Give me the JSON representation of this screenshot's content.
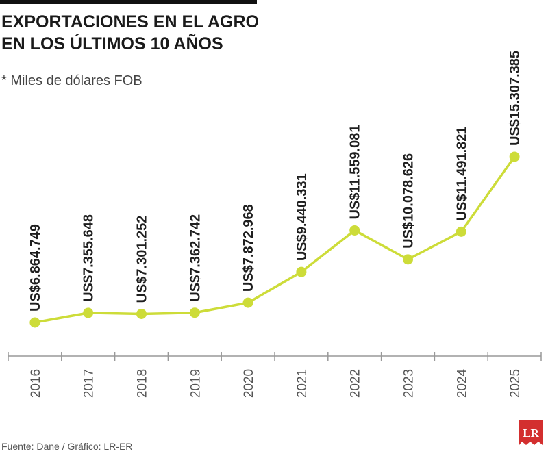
{
  "chart_data": {
    "type": "line",
    "title": "EXPORTACIONES EN EL AGRO",
    "title_line2": "EN LOS ÚLTIMOS 10 AÑOS",
    "subtitle": "* Miles de dólares FOB",
    "source": "Fuente: Dane / Gráfico: LR-ER",
    "logo": "LR",
    "categories": [
      "2016",
      "2017",
      "2018",
      "2019",
      "2020",
      "2021",
      "2022",
      "2023",
      "2024",
      "2025"
    ],
    "series": [
      {
        "name": "Exportaciones",
        "color": "#cddc39",
        "values": [
          6864749,
          7355648,
          7301252,
          7362742,
          7872968,
          9440331,
          11559081,
          10078626,
          11491821,
          15307385
        ],
        "value_labels": [
          "US$6.864.749",
          "US$7.355.648",
          "US$7.301.252",
          "US$7.362.742",
          "US$7.872.968",
          "US$9.440.331",
          "US$11.559.081",
          "US$10.078.626",
          "US$11.491.821",
          "US$15.307.385"
        ]
      }
    ]
  }
}
